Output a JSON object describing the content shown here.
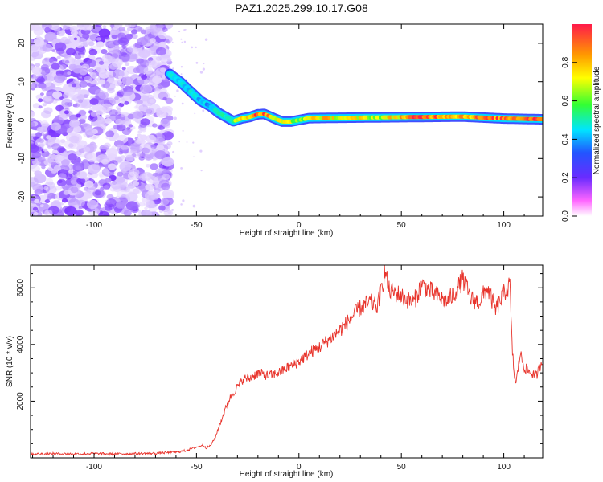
{
  "title": "PAZ1.2025.299.10.17.G08",
  "chart_data": [
    {
      "type": "heatmap",
      "name": "spectrogram",
      "xlabel": "Height of straight line (km)",
      "ylabel": "Frequency (Hz)",
      "xlim": [
        -131,
        119
      ],
      "ylim": [
        -25,
        25
      ],
      "xticks": [
        -100,
        -50,
        0,
        50,
        100
      ],
      "yticks": [
        -20,
        -10,
        0,
        10,
        20
      ],
      "colorbar": {
        "label": "Normalized spectral amplitude",
        "range": [
          0,
          1
        ],
        "ticks": [
          0,
          0.2,
          0.4,
          0.6,
          0.8
        ],
        "tick_labels": [
          "0.0",
          "0.2",
          "0.4",
          "0.6",
          "0.8"
        ]
      },
      "noise_region": {
        "x_from": -131,
        "x_to": -63,
        "description": "diffuse low-amplitude purple noise across all frequencies"
      },
      "signal_track": {
        "x": [
          -63,
          -58,
          -53,
          -48,
          -43,
          -39,
          -35,
          -32,
          -28,
          -24,
          -20,
          -17,
          -14,
          -11,
          -8,
          -4,
          0,
          5,
          20,
          40,
          60,
          80,
          100,
          119
        ],
        "frequency": [
          12,
          10,
          7.5,
          5,
          3.5,
          1.8,
          0.6,
          -0.3,
          0.4,
          0.8,
          1.5,
          1.6,
          0.9,
          0.2,
          -0.4,
          -0.4,
          0.0,
          0.5,
          0.6,
          0.7,
          0.8,
          0.9,
          0.4,
          0.2
        ],
        "amplitude": [
          0.5,
          0.5,
          0.45,
          0.45,
          0.4,
          0.5,
          0.55,
          0.6,
          0.75,
          0.85,
          0.95,
          0.9,
          0.8,
          0.7,
          0.7,
          0.75,
          0.55,
          0.8,
          0.75,
          0.7,
          0.95,
          0.85,
          0.9,
          1.0
        ]
      }
    },
    {
      "type": "line",
      "name": "snr",
      "xlabel": "Height of straight line (km)",
      "ylabel": "SNR (10 * v/v)",
      "xlim": [
        -131,
        119
      ],
      "ylim": [
        0,
        6800
      ],
      "xticks": [
        -100,
        -50,
        0,
        50,
        100
      ],
      "yticks": [
        2000,
        4000,
        6000
      ],
      "series": [
        {
          "name": "SNR",
          "color": "#e8342c",
          "x": [
            -131,
            -120,
            -110,
            -100,
            -90,
            -80,
            -70,
            -60,
            -55,
            -50,
            -47,
            -45,
            -43,
            -41,
            -39,
            -37,
            -35,
            -33,
            -30,
            -27,
            -24,
            -20,
            -15,
            -10,
            -5,
            0,
            5,
            10,
            15,
            20,
            25,
            30,
            35,
            38,
            40,
            42,
            44,
            48,
            52,
            56,
            60,
            64,
            68,
            72,
            76,
            80,
            84,
            88,
            92,
            96,
            100,
            103,
            104,
            105,
            106,
            108,
            110,
            113,
            116,
            119
          ],
          "y": [
            130,
            150,
            140,
            150,
            140,
            150,
            160,
            200,
            260,
            380,
            450,
            350,
            450,
            700,
            1100,
            1500,
            1900,
            2200,
            2500,
            2800,
            2800,
            3000,
            2900,
            3000,
            3200,
            3400,
            3700,
            3900,
            4200,
            4500,
            4900,
            5300,
            5500,
            5300,
            5800,
            6600,
            5900,
            5800,
            5600,
            5500,
            6100,
            5900,
            5700,
            5500,
            5800,
            6300,
            5600,
            5500,
            6000,
            5200,
            5800,
            6100,
            4000,
            3000,
            2600,
            3700,
            3200,
            3000,
            2900,
            3500
          ]
        }
      ]
    }
  ]
}
